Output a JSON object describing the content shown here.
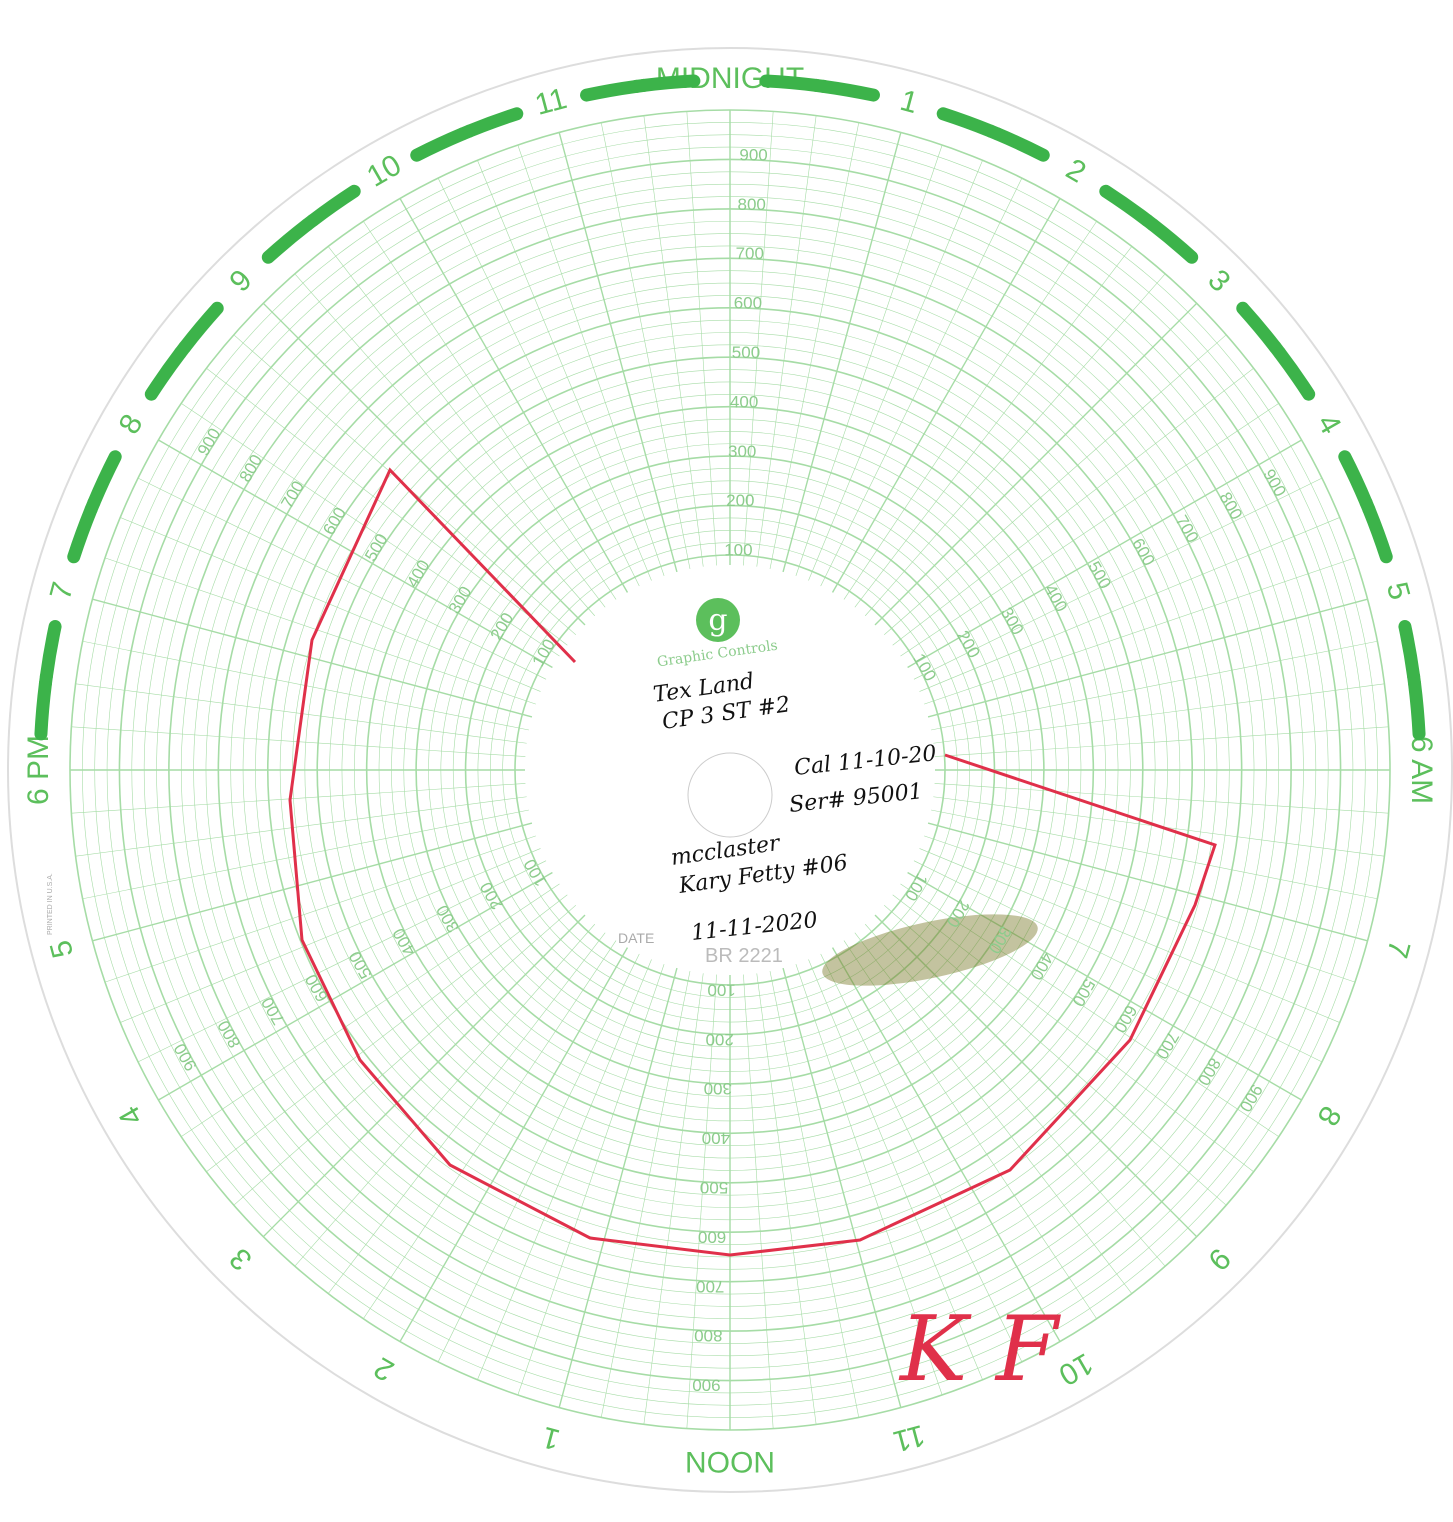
{
  "dial": {
    "hours": [
      "MIDNIGHT",
      "1",
      "2",
      "3",
      "4",
      "5",
      "6 AM",
      "7",
      "8",
      "9",
      "10",
      "11",
      "NOON",
      "1",
      "2",
      "3",
      "4",
      "5",
      "6 PM",
      "7",
      "8",
      "9",
      "10",
      "11"
    ],
    "scale": [
      "100",
      "200",
      "300",
      "400",
      "500",
      "600",
      "700",
      "800",
      "900"
    ]
  },
  "center": {
    "logo": "g",
    "brand": "Graphic Controls",
    "date_label": "DATE",
    "code": "BR 2221",
    "printed": "PRINTED IN U.S.A."
  },
  "notes": {
    "lines": [
      "Tex Land",
      "CP 3 ST #2",
      "Cal 11-10-20",
      "Ser# 95001",
      "mcclaster",
      "Kary Fetty #06",
      "11-11-2020"
    ],
    "initials": "K F"
  }
}
